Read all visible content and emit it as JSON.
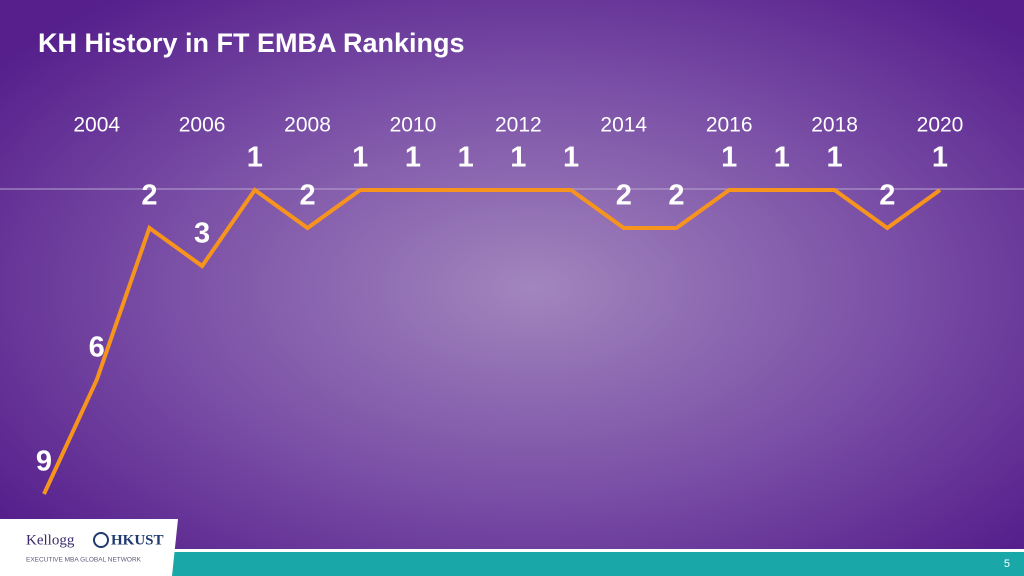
{
  "chart_data": {
    "type": "line",
    "title": "KH History in FT EMBA Rankings",
    "x": [
      2003,
      2004,
      2005,
      2006,
      2007,
      2008,
      2009,
      2010,
      2011,
      2012,
      2013,
      2014,
      2015,
      2016,
      2017,
      2018,
      2019,
      2020
    ],
    "values": [
      9,
      6,
      2,
      3,
      1,
      2,
      1,
      1,
      1,
      1,
      1,
      2,
      2,
      1,
      1,
      1,
      2,
      1
    ],
    "color": "#f7941d",
    "xlim": [
      2003,
      2020
    ],
    "xticks": [
      2004,
      2006,
      2008,
      2010,
      2012,
      2014,
      2016,
      2018,
      2020
    ],
    "ylim": [
      1,
      9
    ],
    "y_inverted": true
  },
  "logo": {
    "left": "Kellogg",
    "right": "HKUST",
    "tagline": "EXECUTIVE MBA GLOBAL NETWORK"
  },
  "page_number": 5
}
